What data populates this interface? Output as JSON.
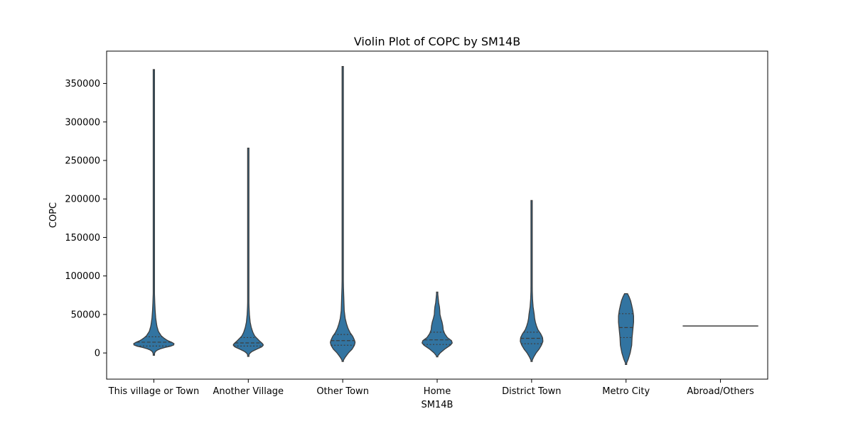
{
  "chart_data": {
    "type": "violin",
    "title": "Violin Plot of COPC by SM14B",
    "xlabel": "SM14B",
    "ylabel": "COPC",
    "ylim": [
      -34000,
      392000
    ],
    "yticks": [
      0,
      50000,
      100000,
      150000,
      200000,
      250000,
      300000,
      350000
    ],
    "ytick_labels": [
      "0",
      "50000",
      "100000",
      "150000",
      "200000",
      "250000",
      "300000",
      "350000"
    ],
    "color": "#3274a1",
    "grid": false,
    "categories": [
      {
        "name": "This village or Town",
        "min": -3000,
        "max": 368000,
        "quartiles": [
          9000,
          14000,
          21000
        ],
        "profile": [
          [
            -3000,
            0
          ],
          [
            0,
            0.02
          ],
          [
            3000,
            0.06
          ],
          [
            6000,
            0.2
          ],
          [
            9000,
            0.46
          ],
          [
            11000,
            0.55
          ],
          [
            13000,
            0.52
          ],
          [
            15000,
            0.41
          ],
          [
            18000,
            0.3
          ],
          [
            22000,
            0.2
          ],
          [
            28000,
            0.12
          ],
          [
            35000,
            0.08
          ],
          [
            45000,
            0.05
          ],
          [
            55000,
            0.035
          ],
          [
            65000,
            0.025
          ],
          [
            80000,
            0.015
          ],
          [
            100000,
            0.007
          ],
          [
            150000,
            0.006
          ],
          [
            250000,
            0.006
          ],
          [
            368000,
            0.004
          ]
        ]
      },
      {
        "name": "Another Village",
        "min": -4500,
        "max": 266000,
        "quartiles": [
          9000,
          13000,
          20000
        ],
        "profile": [
          [
            -4500,
            0
          ],
          [
            -1000,
            0.03
          ],
          [
            2000,
            0.1
          ],
          [
            5000,
            0.23
          ],
          [
            8000,
            0.36
          ],
          [
            10000,
            0.4
          ],
          [
            12000,
            0.38
          ],
          [
            15000,
            0.31
          ],
          [
            18000,
            0.25
          ],
          [
            22000,
            0.17
          ],
          [
            27000,
            0.12
          ],
          [
            33000,
            0.08
          ],
          [
            40000,
            0.05
          ],
          [
            50000,
            0.03
          ],
          [
            60000,
            0.02
          ],
          [
            75000,
            0.012
          ],
          [
            100000,
            0.008
          ],
          [
            150000,
            0.006
          ],
          [
            266000,
            0.004
          ]
        ]
      },
      {
        "name": "Other Town",
        "min": -11000,
        "max": 372000,
        "quartiles": [
          10000,
          16000,
          24000
        ],
        "profile": [
          [
            -11000,
            0
          ],
          [
            -6000,
            0.06
          ],
          [
            0,
            0.15
          ],
          [
            5000,
            0.25
          ],
          [
            10000,
            0.31
          ],
          [
            14000,
            0.33
          ],
          [
            18000,
            0.3
          ],
          [
            22000,
            0.26
          ],
          [
            26000,
            0.2
          ],
          [
            32000,
            0.14
          ],
          [
            38000,
            0.1
          ],
          [
            45000,
            0.065
          ],
          [
            55000,
            0.04
          ],
          [
            70000,
            0.03
          ],
          [
            85000,
            0.02
          ],
          [
            100000,
            0.015
          ],
          [
            150000,
            0.01
          ],
          [
            250000,
            0.008
          ],
          [
            372000,
            0.006
          ]
        ]
      },
      {
        "name": "Home",
        "min": -5000,
        "max": 79000,
        "quartiles": [
          11000,
          17000,
          27000
        ],
        "profile": [
          [
            -5000,
            0
          ],
          [
            0,
            0.08
          ],
          [
            5000,
            0.2
          ],
          [
            10000,
            0.35
          ],
          [
            13000,
            0.4
          ],
          [
            16000,
            0.38
          ],
          [
            20000,
            0.27
          ],
          [
            25000,
            0.2
          ],
          [
            30000,
            0.16
          ],
          [
            35000,
            0.15
          ],
          [
            40000,
            0.13
          ],
          [
            45000,
            0.1
          ],
          [
            50000,
            0.075
          ],
          [
            55000,
            0.07
          ],
          [
            60000,
            0.06
          ],
          [
            65000,
            0.04
          ],
          [
            70000,
            0.03
          ],
          [
            75000,
            0.02
          ],
          [
            79000,
            0.01
          ]
        ]
      },
      {
        "name": "District Town",
        "min": -11000,
        "max": 198000,
        "quartiles": [
          12000,
          19000,
          27000
        ],
        "profile": [
          [
            -11000,
            0
          ],
          [
            -5000,
            0.06
          ],
          [
            0,
            0.12
          ],
          [
            5000,
            0.2
          ],
          [
            10000,
            0.26
          ],
          [
            15000,
            0.3
          ],
          [
            20000,
            0.29
          ],
          [
            25000,
            0.24
          ],
          [
            30000,
            0.17
          ],
          [
            35000,
            0.13
          ],
          [
            40000,
            0.1
          ],
          [
            45000,
            0.08
          ],
          [
            50000,
            0.07
          ],
          [
            55000,
            0.055
          ],
          [
            60000,
            0.04
          ],
          [
            70000,
            0.025
          ],
          [
            80000,
            0.018
          ],
          [
            100000,
            0.015
          ],
          [
            150000,
            0.01
          ],
          [
            198000,
            0.006
          ]
        ]
      },
      {
        "name": "Metro City",
        "min": -15000,
        "max": 77000,
        "quartiles": [
          20000,
          33000,
          51000
        ],
        "profile": [
          [
            -15000,
            0
          ],
          [
            -8000,
            0.06
          ],
          [
            0,
            0.11
          ],
          [
            10000,
            0.15
          ],
          [
            20000,
            0.16
          ],
          [
            30000,
            0.18
          ],
          [
            40000,
            0.2
          ],
          [
            48000,
            0.2
          ],
          [
            55000,
            0.18
          ],
          [
            62000,
            0.15
          ],
          [
            68000,
            0.12
          ],
          [
            73000,
            0.08
          ],
          [
            77000,
            0.04
          ]
        ]
      },
      {
        "name": "Abroad/Others",
        "min": 35000,
        "max": 35000,
        "quartiles": [
          35000,
          35000,
          35000
        ],
        "profile": [
          [
            35000,
            1
          ]
        ]
      }
    ]
  }
}
